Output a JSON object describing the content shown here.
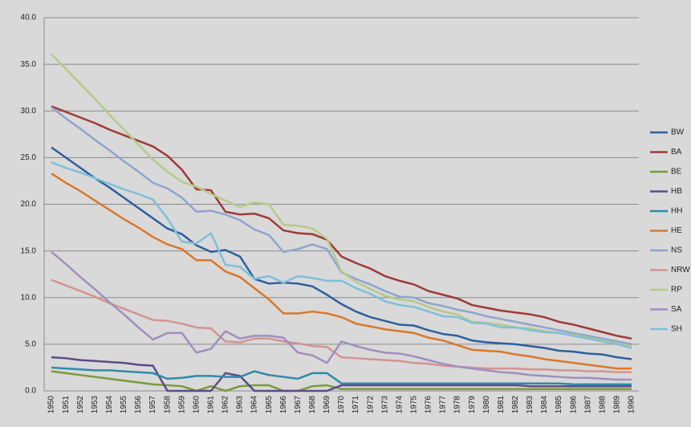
{
  "chart_data": {
    "type": "line",
    "categories": [
      "1950",
      "1951",
      "1952",
      "1953",
      "1954",
      "1955",
      "1956",
      "1957",
      "1958",
      "1959",
      "1960",
      "1961",
      "1962",
      "1963",
      "1964",
      "1965",
      "1966",
      "1967",
      "1968",
      "1969",
      "1970",
      "1971",
      "1972",
      "1973",
      "1974",
      "1975",
      "1976",
      "1977",
      "1978",
      "1979",
      "1980",
      "1981",
      "1982",
      "1983",
      "1984",
      "1985",
      "1986",
      "1987",
      "1988",
      "1989",
      "1990"
    ],
    "ylim": [
      0,
      40
    ],
    "yticks": [
      {
        "value": 0,
        "label": "0.0"
      },
      {
        "value": 5,
        "label": "5.0"
      },
      {
        "value": 10,
        "label": "10.0"
      },
      {
        "value": 15,
        "label": "15.0"
      },
      {
        "value": 20,
        "label": "20.0"
      },
      {
        "value": 25,
        "label": "25.0"
      },
      {
        "value": 30,
        "label": "30.0"
      },
      {
        "value": 35,
        "label": "35.0"
      },
      {
        "value": 40,
        "label": "40.0"
      }
    ],
    "grid": true,
    "legend": "right",
    "series": [
      {
        "name": "BW",
        "color": "#2f5f9e",
        "values": [
          26.1,
          25.0,
          23.9,
          22.8,
          21.8,
          20.7,
          19.6,
          18.5,
          17.4,
          16.8,
          15.6,
          14.9,
          15.1,
          14.4,
          12.0,
          11.5,
          11.6,
          11.5,
          11.2,
          10.3,
          9.3,
          8.5,
          7.9,
          7.5,
          7.1,
          7.0,
          6.5,
          6.1,
          5.9,
          5.4,
          5.2,
          5.1,
          5.0,
          4.8,
          4.6,
          4.3,
          4.2,
          4.0,
          3.9,
          3.6,
          3.4
        ]
      },
      {
        "name": "BA",
        "color": "#9e3a38",
        "values": [
          30.5,
          29.9,
          29.3,
          28.7,
          28.0,
          27.4,
          26.8,
          26.2,
          25.2,
          23.7,
          21.6,
          21.5,
          19.2,
          18.9,
          19.0,
          18.5,
          17.2,
          16.9,
          16.8,
          16.2,
          14.4,
          13.7,
          13.1,
          12.3,
          11.8,
          11.4,
          10.7,
          10.3,
          9.9,
          9.2,
          8.9,
          8.6,
          8.4,
          8.2,
          7.9,
          7.4,
          7.1,
          6.7,
          6.3,
          5.9,
          5.6
        ]
      },
      {
        "name": "BE",
        "color": "#7c9a3a",
        "values": [
          2.1,
          1.9,
          1.7,
          1.5,
          1.3,
          1.1,
          0.9,
          0.7,
          0.6,
          0.5,
          0,
          0.5,
          0,
          0.5,
          0.6,
          0.6,
          0,
          0,
          0.5,
          0.6,
          0.2,
          0.2,
          0.2,
          0.2,
          0.2,
          0.2,
          0.2,
          0.2,
          0.2,
          0.2,
          0.2,
          0.2,
          0.2,
          0.2,
          0.2,
          0.2,
          0.2,
          0.2,
          0.2,
          0.2,
          0.2
        ]
      },
      {
        "name": "HB",
        "color": "#5e4a8a",
        "values": [
          3.6,
          3.5,
          3.3,
          3.2,
          3.1,
          3.0,
          2.8,
          2.7,
          0,
          0,
          0,
          0,
          1.9,
          1.6,
          0,
          0,
          0,
          0,
          0,
          0,
          0.6,
          0.6,
          0.6,
          0.6,
          0.6,
          0.6,
          0.6,
          0.6,
          0.6,
          0.6,
          0.6,
          0.6,
          0.6,
          0.5,
          0.5,
          0.5,
          0.5,
          0.5,
          0.5,
          0.5,
          0.5
        ]
      },
      {
        "name": "HH",
        "color": "#2e8ba8",
        "values": [
          2.5,
          2.4,
          2.3,
          2.2,
          2.2,
          2.1,
          2.0,
          1.9,
          1.3,
          1.4,
          1.6,
          1.6,
          1.5,
          1.5,
          2.1,
          1.7,
          1.5,
          1.3,
          1.9,
          1.9,
          0.8,
          0.8,
          0.8,
          0.8,
          0.8,
          0.8,
          0.8,
          0.8,
          0.8,
          0.8,
          0.8,
          0.8,
          0.8,
          0.8,
          0.8,
          0.8,
          0.7,
          0.7,
          0.7,
          0.7,
          0.7
        ]
      },
      {
        "name": "HE",
        "color": "#d9782b",
        "values": [
          23.3,
          22.3,
          21.4,
          20.4,
          19.4,
          18.4,
          17.5,
          16.5,
          15.7,
          15.2,
          14.0,
          14.0,
          12.8,
          12.2,
          11.0,
          9.8,
          8.3,
          8.3,
          8.5,
          8.3,
          7.9,
          7.2,
          6.9,
          6.6,
          6.4,
          6.2,
          5.7,
          5.4,
          4.9,
          4.4,
          4.3,
          4.2,
          3.9,
          3.7,
          3.4,
          3.2,
          3.0,
          2.8,
          2.6,
          2.4,
          2.4
        ]
      },
      {
        "name": "NS",
        "color": "#8fa4d0",
        "values": [
          30.4,
          29.2,
          28.1,
          26.9,
          25.8,
          24.6,
          23.5,
          22.3,
          21.7,
          20.7,
          19.2,
          19.3,
          18.9,
          18.3,
          17.3,
          16.7,
          14.9,
          15.2,
          15.7,
          15.2,
          12.7,
          12.0,
          11.4,
          10.7,
          10.1,
          10.0,
          9.4,
          9.1,
          8.7,
          8.4,
          8.0,
          7.7,
          7.4,
          7.1,
          6.8,
          6.5,
          6.2,
          5.9,
          5.6,
          5.3,
          5.0
        ]
      },
      {
        "name": "NRW",
        "color": "#d49391",
        "values": [
          11.9,
          11.3,
          10.7,
          10.1,
          9.4,
          8.8,
          8.2,
          7.6,
          7.5,
          7.2,
          6.8,
          6.7,
          5.3,
          5.2,
          5.6,
          5.6,
          5.3,
          5.1,
          4.8,
          4.7,
          3.6,
          3.5,
          3.4,
          3.3,
          3.2,
          3.0,
          2.9,
          2.7,
          2.6,
          2.5,
          2.4,
          2.4,
          2.4,
          2.3,
          2.3,
          2.2,
          2.2,
          2.1,
          2.1,
          2.0,
          2.0
        ]
      },
      {
        "name": "RP",
        "color": "#b6c98a",
        "values": [
          36.1,
          34.5,
          32.9,
          31.3,
          29.6,
          28.0,
          26.4,
          24.8,
          23.5,
          22.4,
          21.9,
          21.1,
          20.4,
          19.7,
          20.2,
          20.0,
          17.8,
          17.7,
          17.4,
          16.3,
          12.8,
          11.7,
          10.9,
          10.2,
          9.8,
          9.6,
          9.0,
          8.5,
          8.2,
          7.4,
          7.3,
          7.1,
          6.8,
          6.7,
          6.4,
          6.2,
          6.0,
          5.7,
          5.4,
          5.1,
          4.8
        ]
      },
      {
        "name": "SA",
        "color": "#a08fbe",
        "values": [
          14.9,
          13.6,
          12.2,
          10.9,
          9.5,
          8.2,
          6.8,
          5.5,
          6.2,
          6.2,
          4.1,
          4.5,
          6.4,
          5.6,
          5.9,
          5.9,
          5.7,
          4.1,
          3.8,
          3.0,
          5.3,
          4.8,
          4.4,
          4.1,
          4.0,
          3.7,
          3.3,
          2.9,
          2.6,
          2.4,
          2.2,
          2.0,
          1.9,
          1.7,
          1.6,
          1.5,
          1.4,
          1.4,
          1.3,
          1.2,
          1.2
        ]
      },
      {
        "name": "SH",
        "color": "#7fbfd8",
        "values": [
          24.5,
          23.9,
          23.4,
          22.8,
          22.2,
          21.6,
          21.1,
          20.5,
          18.5,
          16.0,
          15.8,
          16.9,
          13.5,
          13.3,
          12.0,
          12.3,
          11.6,
          12.3,
          12.1,
          11.8,
          11.8,
          11.0,
          10.4,
          9.6,
          9.2,
          9.0,
          8.5,
          8.0,
          7.9,
          7.3,
          7.2,
          6.8,
          6.8,
          6.5,
          6.3,
          6.2,
          5.9,
          5.6,
          5.3,
          5.0,
          4.6
        ]
      }
    ]
  }
}
